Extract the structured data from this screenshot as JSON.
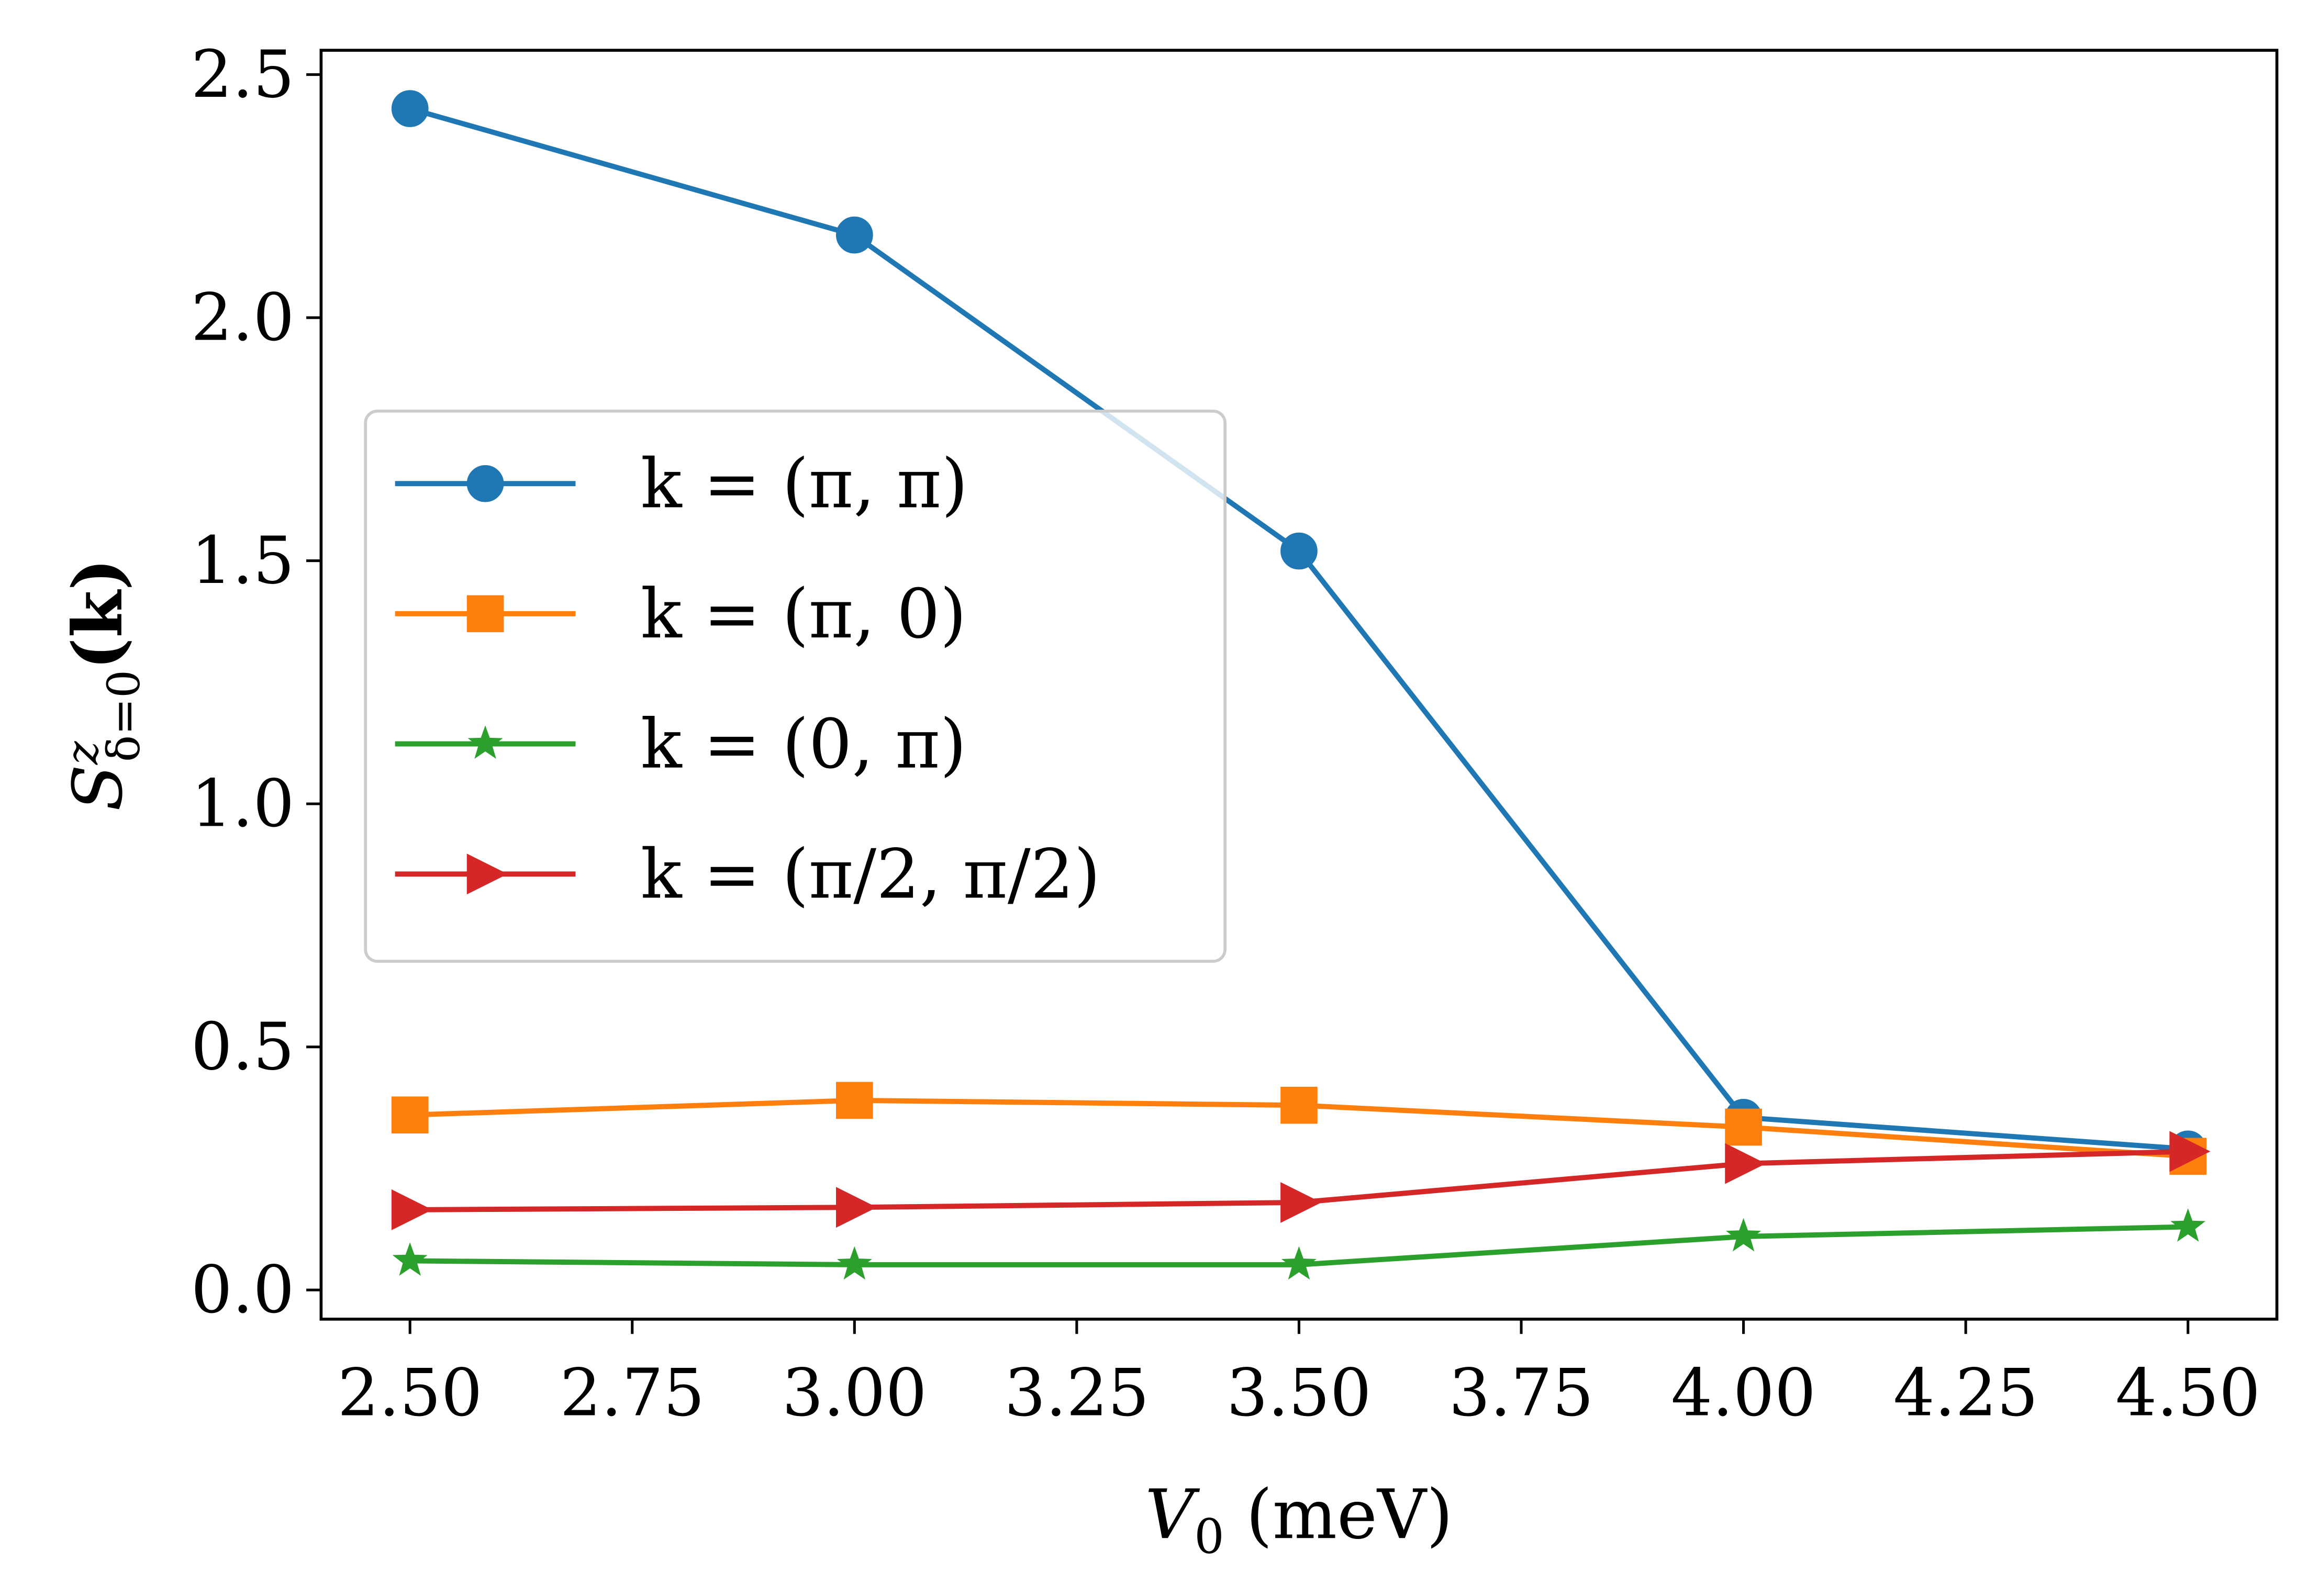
{
  "chart_data": {
    "type": "line",
    "x": [
      2.5,
      3.0,
      3.5,
      4.0,
      4.5
    ],
    "xlabel": {
      "base": "V",
      "sub": "0",
      "rest": " (meV)"
    },
    "ylabel": {
      "base": "S",
      "sup": "z",
      "sub": "δ=0",
      "arg": "(k)"
    },
    "series": [
      {
        "name": "k = (π, π)",
        "color": "#1f77b4",
        "marker": "circle",
        "values": [
          2.43,
          2.17,
          1.52,
          0.355,
          0.29
        ]
      },
      {
        "name": "k = (π, 0)",
        "color": "#ff7f0e",
        "marker": "square",
        "values": [
          0.36,
          0.39,
          0.38,
          0.335,
          0.275
        ]
      },
      {
        "name": "k = (0, π)",
        "color": "#2ca02c",
        "marker": "star",
        "values": [
          0.06,
          0.052,
          0.052,
          0.11,
          0.13
        ]
      },
      {
        "name": "k = (π/2, π/2)",
        "color": "#d62728",
        "marker": "triangle-right",
        "values": [
          0.165,
          0.17,
          0.18,
          0.26,
          0.285
        ]
      }
    ],
    "xlim": [
      2.4,
      4.6
    ],
    "ylim": [
      -0.06,
      2.55
    ],
    "xticks": [
      {
        "value": 2.5,
        "label": "2.50"
      },
      2.75,
      {
        "value": 3.0,
        "label": "3.00"
      },
      3.25,
      {
        "value": 3.5,
        "label": "3.50"
      },
      3.75,
      {
        "value": 4.0,
        "label": "4.00"
      },
      4.25,
      {
        "value": 4.5,
        "label": "4.50"
      }
    ],
    "yticks": [
      {
        "value": 0,
        "label": "0.0"
      },
      0.5,
      {
        "value": 1,
        "label": "1.0"
      },
      1.5,
      {
        "value": 2,
        "label": "2.0"
      },
      2.5
    ],
    "legend": "center-left",
    "grid": false
  }
}
